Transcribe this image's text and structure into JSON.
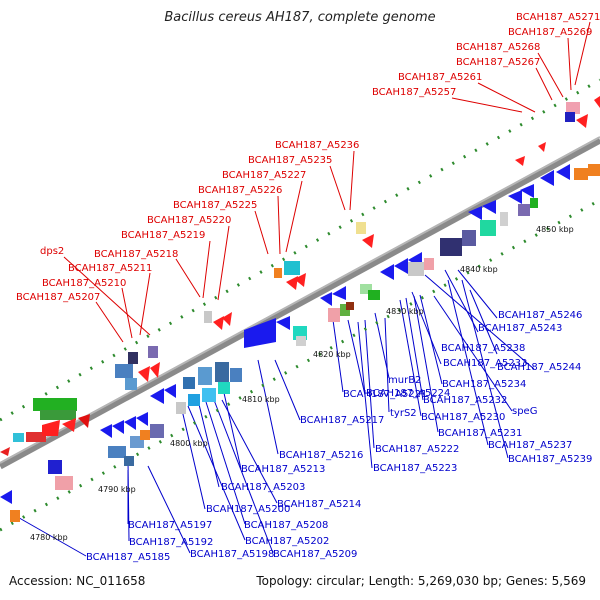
{
  "title": "Bacillus cereus AH187, complete genome",
  "footer": {
    "accession": "Accession: NC_011658",
    "summary": "Topology: circular; Length: 5,269,030 bp; Genes: 5,569"
  },
  "colors": {
    "forward_label": "#dd0000",
    "reverse_label": "#0000cc",
    "backbone": "#8a8a8a",
    "tick": "#2e8b2e"
  },
  "scale_labels": [
    "4780 kbp",
    "4790 kbp",
    "4800 kbp",
    "4810 kbp",
    "4820 kbp",
    "4830 kbp",
    "4840 kbp",
    "4850 kbp"
  ],
  "forward_genes": [
    {
      "label": "BCAH187_A5271"
    },
    {
      "label": "BCAH187_A5269"
    },
    {
      "label": "BCAH187_A5268"
    },
    {
      "label": "BCAH187_A5267"
    },
    {
      "label": "BCAH187_A5261"
    },
    {
      "label": "BCAH187_A5257"
    },
    {
      "label": "BCAH187_A5236"
    },
    {
      "label": "BCAH187_A5235"
    },
    {
      "label": "BCAH187_A5227"
    },
    {
      "label": "BCAH187_A5226"
    },
    {
      "label": "BCAH187_A5225"
    },
    {
      "label": "BCAH187_A5220"
    },
    {
      "label": "BCAH187_A5219"
    },
    {
      "label": "dps2"
    },
    {
      "label": "BCAH187_A5218"
    },
    {
      "label": "BCAH187_A5211"
    },
    {
      "label": "BCAH187_A5210"
    },
    {
      "label": "BCAH187_A5207"
    }
  ],
  "reverse_genes": [
    {
      "label": "BCAH187_A5246"
    },
    {
      "label": "BCAH187_A5243"
    },
    {
      "label": "BCAH187_A5238"
    },
    {
      "label": "BCAH187_A5244"
    },
    {
      "label": "BCAH187_A5233"
    },
    {
      "label": "murB2"
    },
    {
      "label": "BCAH187_A5234"
    },
    {
      "label": "BCAH187_A5221"
    },
    {
      "label": "BCAH187_A5224"
    },
    {
      "label": "BCAH187_A5232"
    },
    {
      "label": "tyrS2"
    },
    {
      "label": "speG"
    },
    {
      "label": "BCAH187_A5230"
    },
    {
      "label": "BCAH187_A5217"
    },
    {
      "label": "BCAH187_A5231"
    },
    {
      "label": "BCAH187_A5222"
    },
    {
      "label": "BCAH187_A5237"
    },
    {
      "label": "BCAH187_A5216"
    },
    {
      "label": "BCAH187_A5239"
    },
    {
      "label": "BCAH187_A5213"
    },
    {
      "label": "BCAH187_A5223"
    },
    {
      "label": "BCAH187_A5203"
    },
    {
      "label": "BCAH187_A5214"
    },
    {
      "label": "BCAH187_A5200"
    },
    {
      "label": "BCAH187_A5208"
    },
    {
      "label": "BCAH187_A5197"
    },
    {
      "label": "BCAH187_A5202"
    },
    {
      "label": "BCAH187_A5192"
    },
    {
      "label": "BCAH187_A5198"
    },
    {
      "label": "BCAH187_A5209"
    },
    {
      "label": "BCAH187_A5185"
    }
  ]
}
